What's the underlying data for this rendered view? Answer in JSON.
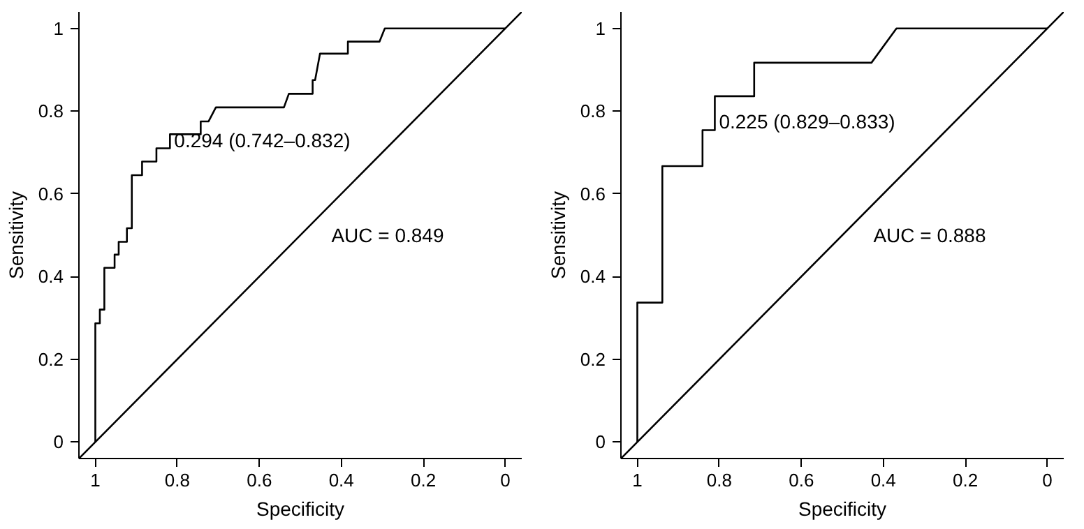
{
  "chart_data": [
    {
      "type": "line",
      "xlabel": "Specificity",
      "ylabel": "Sensitivity",
      "xlim": [
        1.04,
        -0.04
      ],
      "ylim": [
        -0.04,
        1.04
      ],
      "xticks": [
        1,
        0.8,
        0.6,
        0.4,
        0.2,
        0
      ],
      "yticks": [
        0,
        0.2,
        0.4,
        0.6,
        0.8,
        1
      ],
      "series": [
        {
          "color": "#000000",
          "x": [
            1,
            1,
            0.989,
            0.989,
            0.978,
            0.978,
            0.953,
            0.953,
            0.943,
            0.943,
            0.923,
            0.923,
            0.911,
            0.911,
            0.886,
            0.886,
            0.851,
            0.851,
            0.818,
            0.818,
            0.743,
            0.743,
            0.724,
            0.706,
            0.54,
            0.528,
            0.47,
            0.47,
            0.464,
            0.452,
            0.384,
            0.384,
            0.307,
            0.294,
            0
          ],
          "values": [
            0,
            0.287,
            0.287,
            0.32,
            0.32,
            0.421,
            0.421,
            0.453,
            0.453,
            0.484,
            0.484,
            0.517,
            0.517,
            0.645,
            0.645,
            0.678,
            0.678,
            0.71,
            0.71,
            0.744,
            0.744,
            0.775,
            0.775,
            0.809,
            0.809,
            0.842,
            0.842,
            0.875,
            0.875,
            0.939,
            0.939,
            0.968,
            0.968,
            1,
            1
          ]
        },
        {
          "color": "#000000",
          "x": [
            1.04,
            -0.04
          ],
          "values": [
            -0.04,
            1.04
          ]
        }
      ],
      "annotations": [
        {
          "text": "0.294 (0.742–0.832)",
          "x": 0.818,
          "y": 0.71
        },
        "AUC = 0.849"
      ]
    },
    {
      "type": "line",
      "xlabel": "Specificity",
      "ylabel": "Sensitivity",
      "xlim": [
        1.04,
        -0.04
      ],
      "ylim": [
        -0.04,
        1.04
      ],
      "xticks": [
        1,
        0.8,
        0.6,
        0.4,
        0.2,
        0
      ],
      "yticks": [
        0,
        0.2,
        0.4,
        0.6,
        0.8,
        1
      ],
      "series": [
        {
          "color": "#000000",
          "x": [
            1,
            1,
            0.939,
            0.939,
            0.841,
            0.841,
            0.811,
            0.811,
            0.715,
            0.715,
            0.429,
            0.368,
            0
          ],
          "values": [
            0,
            0.337,
            0.337,
            0.667,
            0.667,
            0.754,
            0.754,
            0.836,
            0.836,
            0.917,
            0.917,
            1,
            1
          ]
        },
        {
          "color": "#000000",
          "x": [
            1.04,
            -0.04
          ],
          "values": [
            -0.04,
            1.04
          ]
        }
      ],
      "annotations": [
        {
          "text": "0.225 (0.829–0.833)",
          "x": 0.811,
          "y": 0.754
        },
        "AUC = 0.888"
      ]
    }
  ]
}
